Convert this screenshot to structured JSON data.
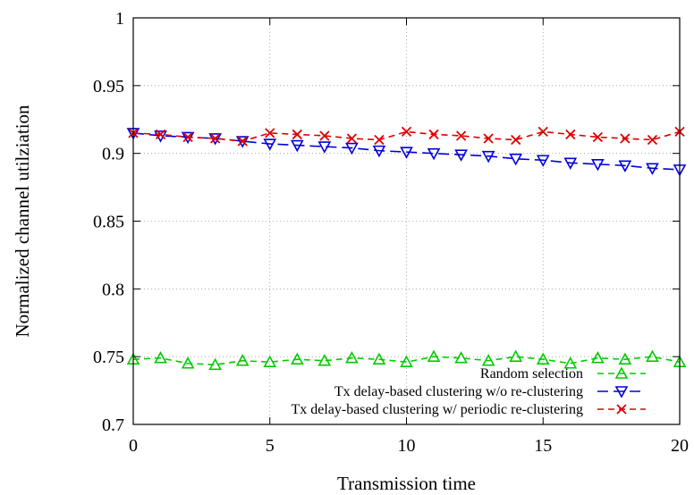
{
  "chart_data": {
    "type": "line",
    "title": "",
    "xlabel": "Transmission time",
    "ylabel": "Normalized channel utilziation",
    "xlim": [
      0,
      20
    ],
    "ylim": [
      0.7,
      1.0
    ],
    "xticks": [
      "0",
      "5",
      "10",
      "15",
      "20"
    ],
    "yticks": [
      "0.7",
      "0.75",
      "0.8",
      "0.85",
      "0.9",
      "0.95",
      "1"
    ],
    "grid": true,
    "legend_position": "bottom-right",
    "x": [
      0,
      1,
      2,
      3,
      4,
      5,
      6,
      7,
      8,
      9,
      10,
      11,
      12,
      13,
      14,
      15,
      16,
      17,
      18,
      19,
      20
    ],
    "series": [
      {
        "name": "Random selection",
        "color": "#00cc00",
        "marker": "triangle-up",
        "dash": "dashed",
        "values": [
          0.748,
          0.749,
          0.745,
          0.744,
          0.747,
          0.746,
          0.748,
          0.747,
          0.749,
          0.748,
          0.746,
          0.75,
          0.749,
          0.747,
          0.75,
          0.748,
          0.745,
          0.749,
          0.748,
          0.75,
          0.746
        ]
      },
      {
        "name": "Tx delay-based clustering w/o re-clustering",
        "color": "#0000dd",
        "marker": "triangle-down",
        "dash": "long-dashed",
        "values": [
          0.915,
          0.913,
          0.912,
          0.911,
          0.909,
          0.907,
          0.906,
          0.905,
          0.904,
          0.902,
          0.901,
          0.9,
          0.899,
          0.898,
          0.896,
          0.895,
          0.893,
          0.892,
          0.891,
          0.889,
          0.888
        ]
      },
      {
        "name": "Tx delay-based clustering w/ periodic re-clustering",
        "color": "#dd0000",
        "marker": "cross",
        "dash": "dashed",
        "values": [
          0.915,
          0.914,
          0.912,
          0.911,
          0.909,
          0.915,
          0.914,
          0.913,
          0.911,
          0.91,
          0.916,
          0.914,
          0.913,
          0.911,
          0.91,
          0.916,
          0.914,
          0.912,
          0.911,
          0.91,
          0.916
        ]
      }
    ]
  }
}
